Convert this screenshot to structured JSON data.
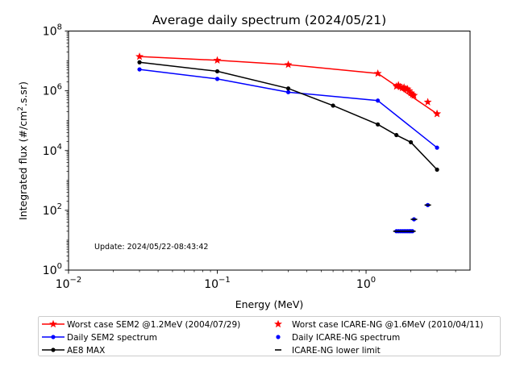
{
  "chart_data": {
    "type": "line",
    "title": "Average daily spectrum (2024/05/21)",
    "xlabel": "Energy (MeV)",
    "ylabel_prefix": "Integrated flux (#/cm",
    "ylabel_sup": "2",
    "ylabel_suffix": ".s.sr)",
    "xscale": "log",
    "yscale": "log",
    "xlim": [
      0.01,
      5
    ],
    "ylim": [
      1,
      100000000
    ],
    "grid": false,
    "legend_position": "below plot, two columns",
    "x_ticks": [
      {
        "value": 0.01,
        "base": "10",
        "exp": "−2"
      },
      {
        "value": 0.1,
        "base": "10",
        "exp": "−1"
      },
      {
        "value": 1,
        "base": "10",
        "exp": "0"
      }
    ],
    "y_ticks": [
      {
        "value": 1,
        "base": "10",
        "exp": "0"
      },
      {
        "value": 100,
        "base": "10",
        "exp": "2"
      },
      {
        "value": 10000,
        "base": "10",
        "exp": "4"
      },
      {
        "value": 1000000,
        "base": "10",
        "exp": "6"
      },
      {
        "value": 100000000,
        "base": "10",
        "exp": "8"
      }
    ],
    "annotation": "Update: 2024/05/22-08:43:42",
    "series": [
      {
        "name": "Worst case SEM2 @1.2MeV (2004/07/29)",
        "color": "#ff0000",
        "marker": "star",
        "linestyle": "solid",
        "points": [
          [
            0.03,
            14000000
          ],
          [
            0.1,
            10500000
          ],
          [
            0.3,
            7500000
          ],
          [
            1.2,
            3800000
          ],
          [
            3.0,
            170000
          ]
        ]
      },
      {
        "name": "Daily SEM2 spectrum",
        "color": "#0000ff",
        "marker": "dot",
        "linestyle": "solid",
        "points": [
          [
            0.03,
            5200000
          ],
          [
            0.1,
            2500000
          ],
          [
            0.3,
            900000
          ],
          [
            1.2,
            470000
          ],
          [
            3.0,
            12500
          ]
        ]
      },
      {
        "name": "AE8 MAX",
        "color": "#000000",
        "marker": "dot",
        "linestyle": "solid",
        "points": [
          [
            0.03,
            9000000
          ],
          [
            0.1,
            4500000
          ],
          [
            0.3,
            1200000
          ],
          [
            0.6,
            320000
          ],
          [
            1.2,
            75000
          ],
          [
            1.6,
            33000
          ],
          [
            2.0,
            19000
          ],
          [
            3.0,
            2300
          ]
        ]
      },
      {
        "name": "Worst case ICARE-NG @1.6MeV (2010/04/11)",
        "color": "#ff0000",
        "marker": "star",
        "linestyle": "none",
        "points": [
          [
            1.6,
            1400000
          ],
          [
            1.65,
            1550000
          ],
          [
            1.7,
            1350000
          ],
          [
            1.75,
            1250000
          ],
          [
            1.8,
            1300000
          ],
          [
            1.85,
            1150000
          ],
          [
            1.9,
            1150000
          ],
          [
            1.95,
            1000000
          ],
          [
            2.0,
            850000
          ],
          [
            2.05,
            750000
          ],
          [
            2.1,
            700000
          ],
          [
            2.6,
            420000
          ],
          [
            3.0,
            170000
          ]
        ]
      },
      {
        "name": "Daily ICARE-NG spectrum",
        "color": "#0000ff",
        "marker": "dot",
        "linestyle": "none",
        "points": [
          [
            1.6,
            20
          ],
          [
            1.65,
            20
          ],
          [
            1.7,
            20
          ],
          [
            1.75,
            20
          ],
          [
            1.8,
            20
          ],
          [
            1.85,
            20
          ],
          [
            1.9,
            20
          ],
          [
            1.95,
            20
          ],
          [
            2.0,
            20
          ],
          [
            2.05,
            20
          ],
          [
            2.1,
            50
          ],
          [
            2.6,
            150
          ]
        ]
      },
      {
        "name": "ICARE-NG lower limit",
        "color": "#000000",
        "marker": "hline",
        "linestyle": "none",
        "points": [
          [
            1.6,
            20
          ],
          [
            1.65,
            20
          ],
          [
            1.7,
            20
          ],
          [
            1.75,
            20
          ],
          [
            1.8,
            20
          ],
          [
            1.85,
            20
          ],
          [
            1.9,
            20
          ],
          [
            1.95,
            20
          ],
          [
            2.0,
            20
          ],
          [
            2.05,
            20
          ],
          [
            2.1,
            50
          ],
          [
            2.6,
            150
          ]
        ]
      }
    ]
  }
}
